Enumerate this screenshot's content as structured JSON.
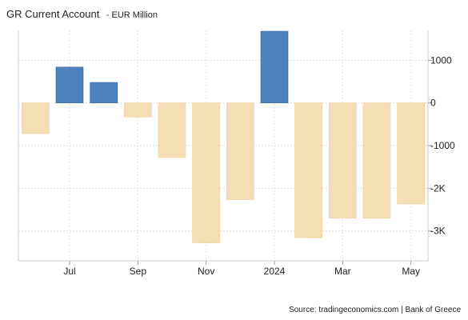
{
  "chart_data": {
    "type": "bar",
    "title": "GR Current Account",
    "subtitle": "- EUR Million",
    "categories": [
      "2023-06",
      "2023-07",
      "2023-08",
      "2023-09",
      "2023-10",
      "2023-11",
      "2023-12",
      "2024-01",
      "2024-02",
      "2024-03",
      "2024-04",
      "2024-05"
    ],
    "values": [
      -720,
      840,
      480,
      -330,
      -1280,
      -3280,
      -2270,
      1680,
      -3160,
      -2700,
      -2700,
      -2370
    ],
    "ylim": [
      -3700,
      1700
    ],
    "yticks": [
      {
        "value": 1000,
        "label": "1000"
      },
      {
        "value": 0,
        "label": "0"
      },
      {
        "value": -1000,
        "label": "-1000"
      },
      {
        "value": -2000,
        "label": "-2K"
      },
      {
        "value": -3000,
        "label": "-3K"
      }
    ],
    "xticks": [
      {
        "index": 1.5,
        "label": "Jul"
      },
      {
        "index": 3.5,
        "label": "Sep"
      },
      {
        "index": 5.5,
        "label": "Nov"
      },
      {
        "index": 7.5,
        "label": "2024"
      },
      {
        "index": 9.5,
        "label": "Mar"
      },
      {
        "index": 11.5,
        "label": "May"
      }
    ],
    "grid": true,
    "legend": "none",
    "colors": {
      "positive": "#4f81c0",
      "negative": "#f5deb3",
      "positive_edge": "#3a5f93",
      "negative_edge": "#e8cfa0",
      "grid": "#e0e0e0",
      "axis": "#cccccc"
    },
    "source": "Source: tradingeconomics.com | Bank of Greece"
  }
}
